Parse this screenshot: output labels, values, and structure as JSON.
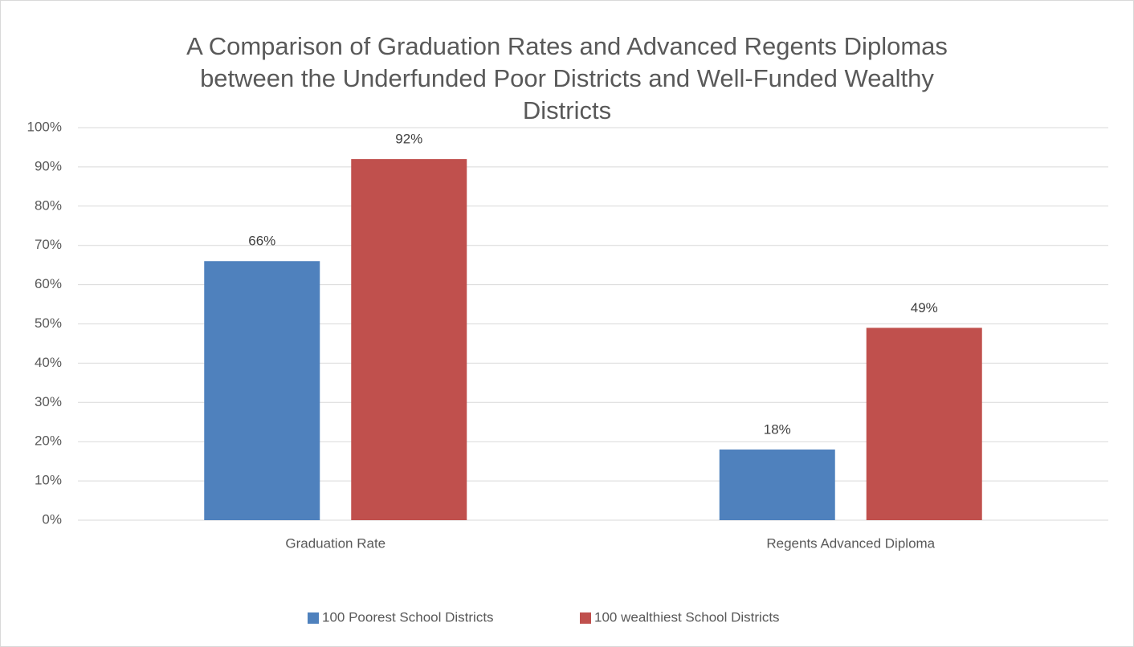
{
  "chart_data": {
    "type": "bar",
    "title": "A Comparison of Graduation Rates and Advanced Regents Diplomas between the Underfunded Poor Districts and Well-Funded Wealthy Districts",
    "categories": [
      "Graduation Rate",
      "Regents Advanced Diploma"
    ],
    "series": [
      {
        "name": "100 Poorest School Districts",
        "color": "#4f81bd",
        "values": [
          66,
          18
        ],
        "value_labels": [
          "66%",
          "18%"
        ]
      },
      {
        "name": "100 wealthiest School Districts",
        "color": "#c0504d",
        "values": [
          92,
          49
        ],
        "value_labels": [
          "92%",
          "49%"
        ]
      }
    ],
    "ylim": [
      0,
      100
    ],
    "yticks": [
      {
        "value": 0,
        "label": "0%"
      },
      {
        "value": 10,
        "label": "10%"
      },
      {
        "value": 20,
        "label": "20%"
      },
      {
        "value": 30,
        "label": "30%"
      },
      {
        "value": 40,
        "label": "40%"
      },
      {
        "value": 50,
        "label": "50%"
      },
      {
        "value": 60,
        "label": "60%"
      },
      {
        "value": 70,
        "label": "70%"
      },
      {
        "value": 80,
        "label": "80%"
      },
      {
        "value": 90,
        "label": "90%"
      },
      {
        "value": 100,
        "label": "100%"
      }
    ],
    "grid": true,
    "legend": "bottom"
  }
}
